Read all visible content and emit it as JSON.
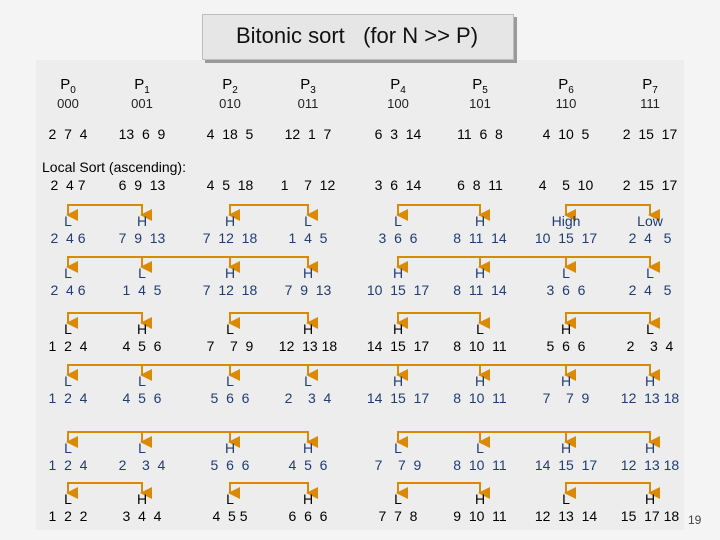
{
  "title": "Bitonic sort   (for N >> P)",
  "page_number": "19",
  "local_sort_label": "Local Sort (ascending):",
  "colors": {
    "blue": "#1f3c73",
    "black": "#000000",
    "arrow": "#d98a00"
  },
  "processors": [
    {
      "name": "P",
      "sub": "0",
      "bits": "000"
    },
    {
      "name": "P",
      "sub": "1",
      "bits": "001"
    },
    {
      "name": "P",
      "sub": "2",
      "bits": "010"
    },
    {
      "name": "P",
      "sub": "3",
      "bits": "011"
    },
    {
      "name": "P",
      "sub": "4",
      "bits": "100"
    },
    {
      "name": "P",
      "sub": "5",
      "bits": "101"
    },
    {
      "name": "P",
      "sub": "6",
      "bits": "110"
    },
    {
      "name": "P",
      "sub": "7",
      "bits": "111"
    }
  ],
  "rows": [
    {
      "cells": [
        {
          "label": "",
          "values": "2  7  4",
          "tone": "black"
        },
        {
          "label": "",
          "values": "13  6  9",
          "tone": "black"
        },
        {
          "label": "",
          "values": "4  18  5",
          "tone": "black"
        },
        {
          "label": "",
          "values": "12  1  7",
          "tone": "black"
        },
        {
          "label": "",
          "values": "6  3  14",
          "tone": "black"
        },
        {
          "label": "",
          "values": "11  6  8",
          "tone": "black"
        },
        {
          "label": "",
          "values": "4  10  5",
          "tone": "black"
        },
        {
          "label": "",
          "values": "2  15  17",
          "tone": "black"
        }
      ]
    },
    {
      "cells": [
        {
          "label": "",
          "values": "2  4 7",
          "tone": "black"
        },
        {
          "label": "",
          "values": "6  9  13",
          "tone": "black"
        },
        {
          "label": "",
          "values": "4  5  18",
          "tone": "black"
        },
        {
          "label": "",
          "values": "1    7  12",
          "tone": "black"
        },
        {
          "label": "",
          "values": "3  6  14",
          "tone": "black"
        },
        {
          "label": "",
          "values": "6  8  11",
          "tone": "black"
        },
        {
          "label": "",
          "values": "4    5  10",
          "tone": "black"
        },
        {
          "label": "",
          "values": "2  15  17",
          "tone": "black"
        }
      ]
    },
    {
      "cells": [
        {
          "label": "L",
          "values": "2  4 6",
          "tone": "blue"
        },
        {
          "label": "H",
          "values": "7  9  13",
          "tone": "blue"
        },
        {
          "label": "H",
          "values": "7  12  18",
          "tone": "blue"
        },
        {
          "label": "L",
          "values": "1  4  5",
          "tone": "blue"
        },
        {
          "label": "L",
          "values": "3  6  6",
          "tone": "blue"
        },
        {
          "label": "H",
          "values": "8  11  14",
          "tone": "blue"
        },
        {
          "label": "High",
          "values": "10  15  17",
          "tone": "blue"
        },
        {
          "label": "Low",
          "values": "2  4   5",
          "tone": "blue"
        }
      ]
    },
    {
      "cells": [
        {
          "label": "L",
          "values": "2  4 6",
          "tone": "blue"
        },
        {
          "label": "L",
          "values": "1  4  5",
          "tone": "blue"
        },
        {
          "label": "H",
          "values": "7  12  18",
          "tone": "blue"
        },
        {
          "label": "H",
          "values": "7  9  13",
          "tone": "blue"
        },
        {
          "label": "H",
          "values": "10  15  17",
          "tone": "blue"
        },
        {
          "label": "H",
          "values": "8  11  14",
          "tone": "blue"
        },
        {
          "label": "L",
          "values": "3  6  6",
          "tone": "blue"
        },
        {
          "label": "L",
          "values": "2  4   5",
          "tone": "blue"
        }
      ]
    },
    {
      "cells": [
        {
          "label": "L",
          "values": "1  2  4",
          "tone": "black"
        },
        {
          "label": "H",
          "values": "4  5  6",
          "tone": "black"
        },
        {
          "label": "L",
          "values": "7    7  9",
          "tone": "black"
        },
        {
          "label": "H",
          "values": "12  13 18",
          "tone": "black"
        },
        {
          "label": "H",
          "values": "14  15  17",
          "tone": "black"
        },
        {
          "label": "L",
          "values": "8  10  11",
          "tone": "black"
        },
        {
          "label": "H",
          "values": "5  6  6",
          "tone": "black"
        },
        {
          "label": "L",
          "values": "2    3  4",
          "tone": "black"
        }
      ]
    },
    {
      "cells": [
        {
          "label": "L",
          "values": "1  2  4",
          "tone": "blue"
        },
        {
          "label": "L",
          "values": "4  5  6",
          "tone": "blue"
        },
        {
          "label": "L",
          "values": "5  6  6",
          "tone": "blue"
        },
        {
          "label": "L",
          "values": "2    3  4",
          "tone": "blue"
        },
        {
          "label": "H",
          "values": "14  15  17",
          "tone": "blue"
        },
        {
          "label": "H",
          "values": "8  10  11",
          "tone": "blue"
        },
        {
          "label": "H",
          "values": "7    7  9",
          "tone": "blue"
        },
        {
          "label": "H",
          "values": "12  13 18",
          "tone": "blue"
        }
      ]
    },
    {
      "cells": [
        {
          "label": "L",
          "values": "1  2  4",
          "tone": "blue"
        },
        {
          "label": "L",
          "values": "2    3  4",
          "tone": "blue"
        },
        {
          "label": "H",
          "values": "5  6  6",
          "tone": "blue"
        },
        {
          "label": "H",
          "values": "4  5  6",
          "tone": "blue"
        },
        {
          "label": "L",
          "values": "7    7  9",
          "tone": "blue"
        },
        {
          "label": "L",
          "values": "8  10  11",
          "tone": "blue"
        },
        {
          "label": "H",
          "values": "14  15  17",
          "tone": "blue"
        },
        {
          "label": "H",
          "values": "12  13 18",
          "tone": "blue"
        }
      ]
    },
    {
      "cells": [
        {
          "label": "L",
          "values": "1  2  2",
          "tone": "black"
        },
        {
          "label": "H",
          "values": "3  4  4",
          "tone": "black"
        },
        {
          "label": "L",
          "values": "4  5 5",
          "tone": "black"
        },
        {
          "label": "H",
          "values": "6  6  6",
          "tone": "black"
        },
        {
          "label": "L",
          "values": "7  7  8",
          "tone": "black"
        },
        {
          "label": "H",
          "values": "9  10  11",
          "tone": "black"
        },
        {
          "label": "L",
          "values": "12  13  14",
          "tone": "black"
        },
        {
          "label": "H",
          "values": "15  17 18",
          "tone": "black"
        }
      ]
    }
  ],
  "exchanges": [
    {
      "row": 2,
      "pairs": [
        [
          0,
          1
        ],
        [
          2,
          3
        ],
        [
          4,
          5
        ],
        [
          6,
          7
        ]
      ]
    },
    {
      "row": 3,
      "pairs": [
        [
          0,
          2
        ],
        [
          1,
          3
        ],
        [
          4,
          6
        ],
        [
          5,
          7
        ]
      ]
    },
    {
      "row": 4,
      "pairs": [
        [
          0,
          1
        ],
        [
          2,
          3
        ],
        [
          4,
          5
        ],
        [
          6,
          7
        ]
      ]
    },
    {
      "row": 5,
      "pairs": [
        [
          0,
          4
        ],
        [
          1,
          5
        ],
        [
          2,
          6
        ],
        [
          3,
          7
        ]
      ]
    },
    {
      "row": 6,
      "pairs": [
        [
          0,
          2
        ],
        [
          1,
          3
        ],
        [
          4,
          6
        ],
        [
          5,
          7
        ]
      ]
    },
    {
      "row": 7,
      "pairs": [
        [
          0,
          1
        ],
        [
          2,
          3
        ],
        [
          4,
          5
        ],
        [
          6,
          7
        ]
      ]
    }
  ]
}
